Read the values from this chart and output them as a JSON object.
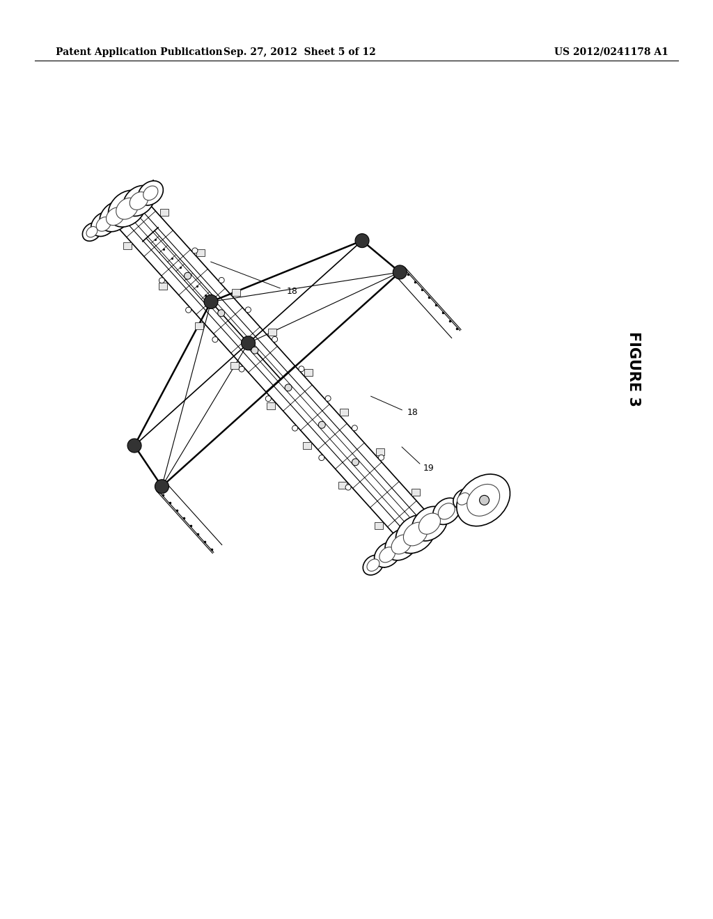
{
  "background_color": "#ffffff",
  "header_left": "Patent Application Publication",
  "header_center": "Sep. 27, 2012  Sheet 5 of 12",
  "header_right": "US 2012/0241178 A1",
  "figure_label": "FIGURE 3",
  "header_fontsize": 10,
  "figure_label_fontsize": 15,
  "ref_label_fontsize": 9,
  "page_width": 10.24,
  "page_height": 13.2
}
